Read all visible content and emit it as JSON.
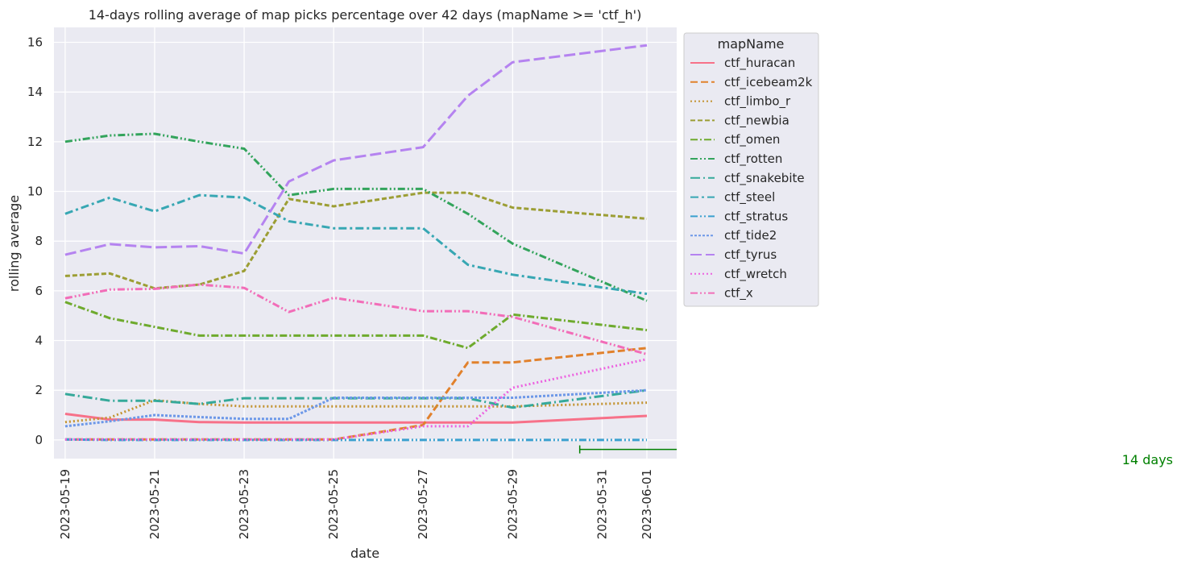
{
  "chart_data": {
    "type": "line",
    "title": "14-days rolling average of map picks percentage over 42 days (mapName >= 'ctf_h')",
    "xlabel": "date",
    "ylabel": "rolling average",
    "x": [
      "2023-05-19",
      "2023-05-20",
      "2023-05-21",
      "2023-05-22",
      "2023-05-23",
      "2023-05-24",
      "2023-05-25",
      "2023-05-27",
      "2023-05-28",
      "2023-05-29",
      "2023-06-01"
    ],
    "xticks": [
      "2023-05-19",
      "2023-05-21",
      "2023-05-23",
      "2023-05-25",
      "2023-05-27",
      "2023-05-29",
      "2023-05-31",
      "2023-06-01"
    ],
    "xlim": [
      "2023-05-18T18:00",
      "2023-06-01T16:00"
    ],
    "yticks": [
      0,
      2,
      4,
      6,
      8,
      10,
      12,
      14,
      16
    ],
    "ylim": [
      -0.75,
      16.6
    ],
    "grid": true,
    "background": "#eaeaf2",
    "legend": {
      "title": "mapName",
      "placement": "outside upper-right"
    },
    "series": [
      {
        "name": "ctf_huracan",
        "color": "#f77189",
        "dash": "solid",
        "values": [
          1.05,
          0.82,
          0.82,
          0.72,
          0.7,
          0.7,
          0.7,
          0.7,
          0.7,
          0.7,
          0.97
        ]
      },
      {
        "name": "ctf_icebeam2k",
        "color": "#e1812c",
        "dash": "dashed",
        "values": [
          0.02,
          0.02,
          0.02,
          0.02,
          0.02,
          0.02,
          0.02,
          0.6,
          3.12,
          3.12,
          3.7
        ]
      },
      {
        "name": "ctf_limbo_r",
        "color": "#c39330",
        "dash": "dotted",
        "values": [
          0.72,
          0.9,
          1.6,
          1.45,
          1.35,
          1.35,
          1.35,
          1.35,
          1.35,
          1.35,
          1.5
        ]
      },
      {
        "name": "ctf_newbia",
        "color": "#9c9e34",
        "dash": "densedash",
        "values": [
          6.6,
          6.7,
          6.1,
          6.25,
          6.8,
          9.7,
          9.4,
          9.95,
          9.95,
          9.35,
          8.9
        ]
      },
      {
        "name": "ctf_omen",
        "color": "#6eaa2d",
        "dash": "dashdot",
        "values": [
          5.55,
          4.9,
          4.55,
          4.2,
          4.2,
          4.2,
          4.2,
          4.2,
          3.7,
          5.05,
          4.42
        ]
      },
      {
        "name": "ctf_rotten",
        "color": "#33a45c",
        "dash": "dashdotdot",
        "values": [
          12.0,
          12.25,
          12.32,
          12.0,
          11.72,
          9.85,
          10.1,
          10.1,
          9.1,
          7.9,
          5.6
        ]
      },
      {
        "name": "ctf_snakebite",
        "color": "#35a99a",
        "dash": "longdashdot",
        "values": [
          1.85,
          1.58,
          1.58,
          1.45,
          1.68,
          1.68,
          1.68,
          1.68,
          1.68,
          1.3,
          2.0
        ]
      },
      {
        "name": "ctf_steel",
        "color": "#37a7b3",
        "dash": "dashdot2",
        "values": [
          9.1,
          9.75,
          9.2,
          9.85,
          9.75,
          8.8,
          8.52,
          8.52,
          7.05,
          6.65,
          5.88
        ]
      },
      {
        "name": "ctf_stratus",
        "color": "#3aa0cf",
        "dash": "dashdotdot",
        "values": [
          0.02,
          0.0,
          0.0,
          0.0,
          0.0,
          0.0,
          0.0,
          0.0,
          0.0,
          0.0,
          0.0
        ]
      },
      {
        "name": "ctf_tide2",
        "color": "#6d98e8",
        "dash": "densedot",
        "values": [
          0.55,
          0.75,
          1.0,
          0.92,
          0.85,
          0.85,
          1.7,
          1.7,
          1.7,
          1.7,
          2.0
        ]
      },
      {
        "name": "ctf_tyrus",
        "color": "#b583f0",
        "dash": "longdash",
        "values": [
          7.45,
          7.88,
          7.75,
          7.8,
          7.5,
          10.4,
          11.25,
          11.78,
          13.85,
          15.2,
          15.88
        ]
      },
      {
        "name": "ctf_wretch",
        "color": "#ec63e0",
        "dash": "dotted",
        "values": [
          0.02,
          0.02,
          0.02,
          0.02,
          0.02,
          0.02,
          0.02,
          0.55,
          0.55,
          2.1,
          3.25
        ]
      },
      {
        "name": "ctf_x",
        "color": "#f26db8",
        "dash": "dashdotdot",
        "values": [
          5.7,
          6.05,
          6.08,
          6.25,
          6.12,
          5.15,
          5.72,
          5.18,
          5.18,
          4.95,
          3.45
        ]
      }
    ],
    "annotation": {
      "text": "14 days",
      "color": "#008000",
      "bracket_start": "2023-05-30T12:00",
      "y": -0.38
    }
  }
}
